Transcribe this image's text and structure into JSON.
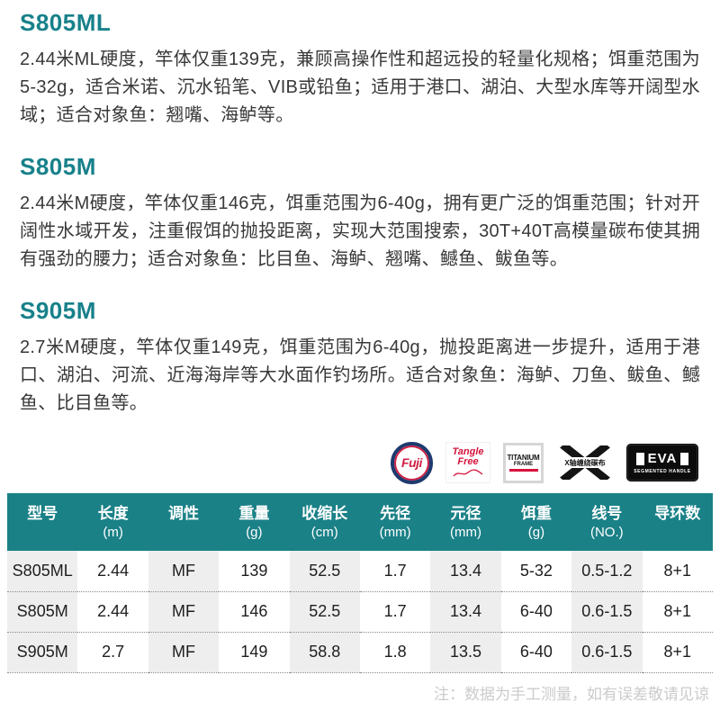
{
  "page": {
    "accent_color": "#17818a",
    "table_header_bg": "#1a8187",
    "stripe_color": "#eeeeee"
  },
  "sections": [
    {
      "heading": "S805ML",
      "body": "2.44米ML硬度，竿体仅重139克，兼顾高操作性和超远投的轻量化规格；饵重范围为5-32g，适合米诺、沉水铅笔、VIB或铅鱼；适用于港口、湖泊、大型水库等开阔型水域；适合对象鱼：翘嘴、海鲈等。"
    },
    {
      "heading": "S805M",
      "body": "2.44米M硬度，竿体仅重146克，饵重范围为6-40g，拥有更广泛的饵重范围；针对开阔性水域开发，注重假饵的抛投距离，实现大范围搜索，30T+40T高模量碳布使其拥有强劲的腰力；适合对象鱼：比目鱼、海鲈、翘嘴、鳡鱼、鲅鱼等。"
    },
    {
      "heading": "S905M",
      "body": "2.7米M硬度，竿体仅重149克，饵重范围为6-40g，抛投距离进一步提升，适用于港口、湖泊、河流、近海海岸等大水面作钓场所。适合对象鱼：海鲈、刀鱼、鲅鱼、鳡鱼、比目鱼等。"
    }
  ],
  "badges": {
    "fuji": {
      "label": "Fuji"
    },
    "tangle_free": {
      "line1": "Tangle",
      "line2": "Free"
    },
    "titanium": {
      "line1": "TITANIUM",
      "line2": "FRAME"
    },
    "x_wrap": {
      "label": "X轴缠绕碳布"
    },
    "eva": {
      "label": "EVA",
      "sub": "SEGMENTED HANDLE"
    }
  },
  "spec_table": {
    "columns": [
      {
        "title": "型号",
        "unit": ""
      },
      {
        "title": "长度",
        "unit": "(m)"
      },
      {
        "title": "调性",
        "unit": ""
      },
      {
        "title": "重量",
        "unit": "(g)"
      },
      {
        "title": "收缩长",
        "unit": "(cm)"
      },
      {
        "title": "先径",
        "unit": "(mm)"
      },
      {
        "title": "元径",
        "unit": "(mm)"
      },
      {
        "title": "饵重",
        "unit": "(g)"
      },
      {
        "title": "线号",
        "unit": "(NO.)"
      },
      {
        "title": "导环数",
        "unit": ""
      }
    ],
    "rows": [
      [
        "S805ML",
        "2.44",
        "MF",
        "139",
        "52.5",
        "1.7",
        "13.4",
        "5-32",
        "0.5-1.2",
        "8+1"
      ],
      [
        "S805M",
        "2.44",
        "MF",
        "146",
        "52.5",
        "1.7",
        "13.4",
        "6-40",
        "0.6-1.5",
        "8+1"
      ],
      [
        "S905M",
        "2.7",
        "MF",
        "149",
        "58.8",
        "1.8",
        "13.5",
        "6-40",
        "0.6-1.5",
        "8+1"
      ]
    ]
  },
  "footnote": "注：数据为手工测量，如有误差敬请见谅"
}
